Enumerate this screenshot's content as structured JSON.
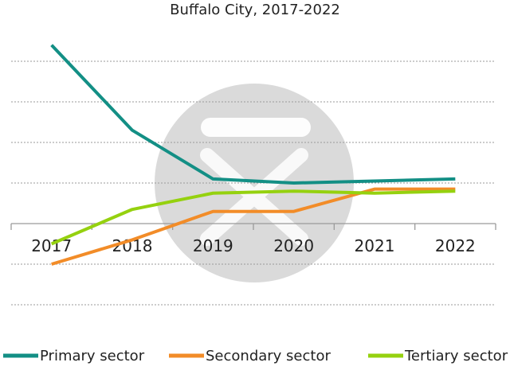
{
  "chart_data": {
    "type": "line",
    "title": "Buffalo City, 2017-2022",
    "categories": [
      "2017",
      "2018",
      "2019",
      "2020",
      "2021",
      "2022"
    ],
    "series": [
      {
        "name": "Primary sector",
        "color": "#138f85",
        "values": [
          4.4,
          2.3,
          1.1,
          1.0,
          1.05,
          1.1
        ]
      },
      {
        "name": "Secondary sector",
        "color": "#f28c28",
        "values": [
          -1.0,
          -0.4,
          0.3,
          0.3,
          0.85,
          0.85
        ]
      },
      {
        "name": "Tertiary sector",
        "color": "#95d10f",
        "values": [
          -0.5,
          0.35,
          0.75,
          0.8,
          0.75,
          0.8
        ]
      }
    ],
    "grid": true,
    "legend_position": "bottom"
  }
}
